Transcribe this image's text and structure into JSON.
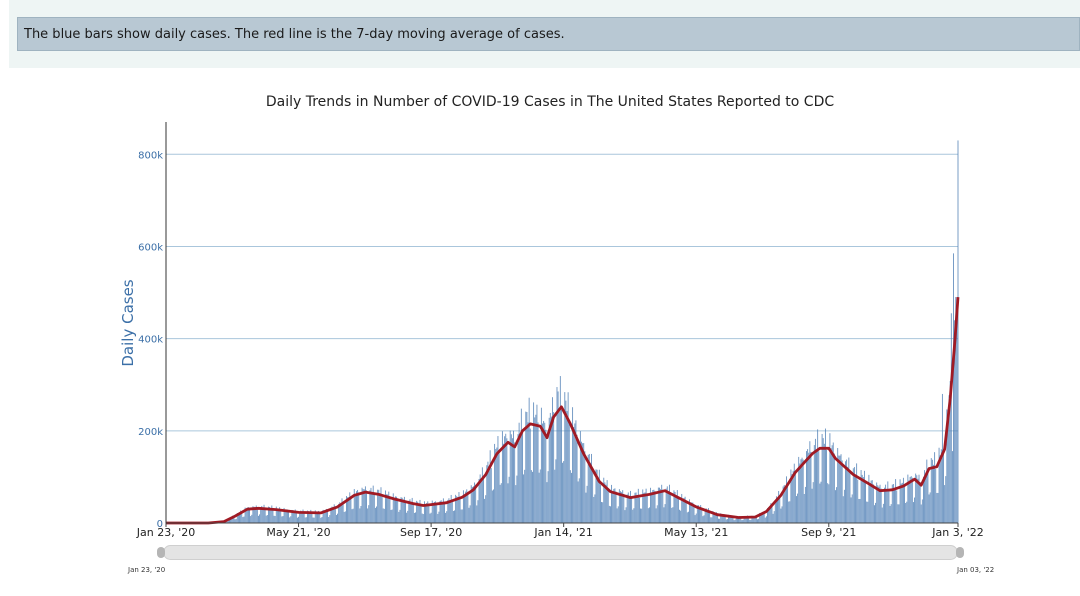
{
  "note": "The blue bars show daily cases. The red line is the 7-day moving average of cases.",
  "slider": {
    "start_label": "Jan 23, '20",
    "end_label": "Jan 03, '22"
  },
  "colors": {
    "bars": "#4f7fb5",
    "line": "#a01a24",
    "grid": "#aac6dc",
    "axis_label": "#3b6fa7"
  },
  "chart_data": {
    "type": "bar",
    "title": "Daily Trends in Number of COVID-19 Cases in The United States Reported to CDC",
    "xlabel": "",
    "ylabel": "Daily Cases",
    "ylim": [
      0,
      870000
    ],
    "yticks": [
      0,
      200000,
      400000,
      600000,
      800000
    ],
    "ytick_labels": [
      "0",
      "200k",
      "400k",
      "600k",
      "800k"
    ],
    "xlim": [
      "2020-01-23",
      "2022-01-03"
    ],
    "xticks": [
      {
        "date": "2020-01-23",
        "label": "Jan 23, '20"
      },
      {
        "date": "2020-05-21",
        "label": "May 21, '20"
      },
      {
        "date": "2020-09-17",
        "label": "Sep 17, '20"
      },
      {
        "date": "2021-01-14",
        "label": "Jan 14, '21"
      },
      {
        "date": "2021-05-13",
        "label": "May 13, '21"
      },
      {
        "date": "2021-09-09",
        "label": "Sep 9, '21"
      },
      {
        "date": "2022-01-03",
        "label": "Jan 3, '22"
      }
    ],
    "series": [
      {
        "type": "line",
        "points": [
          [
            "2020-01-23",
            0
          ],
          [
            "2020-03-01",
            0
          ],
          [
            "2020-03-15",
            3000
          ],
          [
            "2020-03-25",
            15000
          ],
          [
            "2020-04-05",
            30000
          ],
          [
            "2020-04-15",
            32000
          ],
          [
            "2020-05-01",
            29000
          ],
          [
            "2020-05-21",
            23000
          ],
          [
            "2020-06-10",
            22000
          ],
          [
            "2020-06-25",
            35000
          ],
          [
            "2020-07-10",
            60000
          ],
          [
            "2020-07-20",
            67000
          ],
          [
            "2020-08-01",
            62000
          ],
          [
            "2020-08-15",
            52000
          ],
          [
            "2020-09-01",
            42000
          ],
          [
            "2020-09-10",
            38000
          ],
          [
            "2020-09-17",
            40000
          ],
          [
            "2020-10-01",
            44000
          ],
          [
            "2020-10-15",
            56000
          ],
          [
            "2020-10-25",
            72000
          ],
          [
            "2020-11-05",
            105000
          ],
          [
            "2020-11-15",
            150000
          ],
          [
            "2020-11-25",
            175000
          ],
          [
            "2020-12-01",
            165000
          ],
          [
            "2020-12-08",
            200000
          ],
          [
            "2020-12-15",
            215000
          ],
          [
            "2020-12-24",
            210000
          ],
          [
            "2020-12-30",
            185000
          ],
          [
            "2021-01-05",
            230000
          ],
          [
            "2021-01-12",
            252000
          ],
          [
            "2021-01-20",
            215000
          ],
          [
            "2021-02-01",
            150000
          ],
          [
            "2021-02-15",
            90000
          ],
          [
            "2021-02-25",
            68000
          ],
          [
            "2021-03-15",
            55000
          ],
          [
            "2021-04-01",
            62000
          ],
          [
            "2021-04-15",
            70000
          ],
          [
            "2021-05-01",
            50000
          ],
          [
            "2021-05-13",
            35000
          ],
          [
            "2021-06-01",
            18000
          ],
          [
            "2021-06-20",
            12000
          ],
          [
            "2021-07-05",
            13000
          ],
          [
            "2021-07-15",
            25000
          ],
          [
            "2021-07-28",
            60000
          ],
          [
            "2021-08-10",
            110000
          ],
          [
            "2021-08-25",
            150000
          ],
          [
            "2021-09-01",
            162000
          ],
          [
            "2021-09-09",
            162000
          ],
          [
            "2021-09-15",
            140000
          ],
          [
            "2021-10-01",
            105000
          ],
          [
            "2021-10-15",
            85000
          ],
          [
            "2021-10-25",
            70000
          ],
          [
            "2021-11-05",
            72000
          ],
          [
            "2021-11-15",
            80000
          ],
          [
            "2021-11-25",
            95000
          ],
          [
            "2021-12-01",
            82000
          ],
          [
            "2021-12-08",
            118000
          ],
          [
            "2021-12-15",
            122000
          ],
          [
            "2021-12-22",
            160000
          ],
          [
            "2021-12-27",
            270000
          ],
          [
            "2021-12-31",
            390000
          ],
          [
            "2022-01-03",
            490000
          ]
        ]
      },
      {
        "type": "bar",
        "spikes": [
          [
            "2021-01-08",
            295000
          ],
          [
            "2021-12-20",
            280000
          ],
          [
            "2021-12-28",
            455000
          ],
          [
            "2021-12-30",
            585000
          ],
          [
            "2022-01-03",
            830000
          ]
        ]
      }
    ]
  }
}
